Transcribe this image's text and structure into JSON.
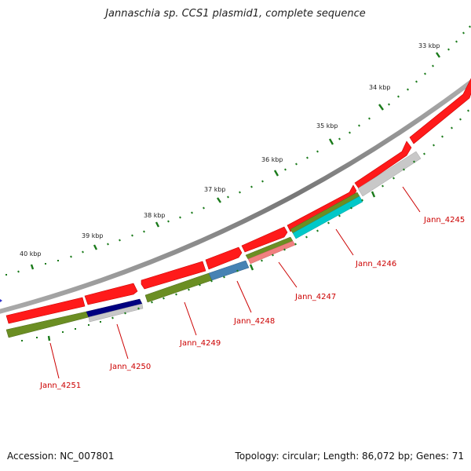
{
  "title": "Jannaschia sp. CCS1 plasmid1, complete sequence",
  "footer": {
    "accession": "Accession: NC_007801",
    "summary": "Topology: circular; Length: 86,072 bp; Genes: 71"
  },
  "colors": {
    "backbone": "#8a8a8a",
    "cds_forward": "#ff0000",
    "tick": "#1a7a1a",
    "gene_label": "#cc0000",
    "olive": "#6b8e23",
    "navy": "#000080",
    "steelblue": "#4682b4",
    "salmon": "#f08080",
    "cyan": "#00c8c8",
    "lightgray": "#c8c8c8"
  },
  "kbp_labels": [
    "40 kbp",
    "39 kbp",
    "38 kbp",
    "37 kbp",
    "36 kbp",
    "35 kbp",
    "34 kbp",
    "33 kbp"
  ],
  "gene_labels": [
    "Jann_4251",
    "Jann_4250",
    "Jann_4249",
    "Jann_4248",
    "Jann_4247",
    "Jann_4246",
    "Jann_4245"
  ]
}
